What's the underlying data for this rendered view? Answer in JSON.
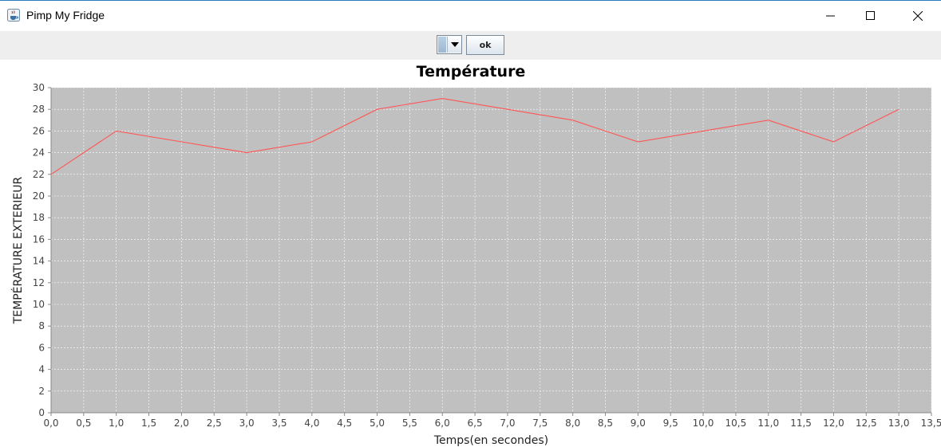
{
  "window": {
    "title": "Pimp My Fridge",
    "icon": "java-coffee-icon",
    "controls": [
      "minimize-icon",
      "maximize-icon",
      "close-icon"
    ]
  },
  "toolbar": {
    "combo_value": "",
    "ok_label": "ok"
  },
  "chart_data": {
    "type": "line",
    "title": "Température",
    "xlabel": "Temps(en secondes)",
    "ylabel": "TEMPÉRATURE EXTERIEUR",
    "xlim": [
      0,
      13.5
    ],
    "ylim": [
      0,
      30
    ],
    "x_ticks": [
      "0,0",
      "0,5",
      "1,0",
      "1,5",
      "2,0",
      "2,5",
      "3,0",
      "3,5",
      "4,0",
      "4,5",
      "5,0",
      "5,5",
      "6,0",
      "6,5",
      "7,0",
      "7,5",
      "8,0",
      "8,5",
      "9,0",
      "9,5",
      "10,0",
      "10,5",
      "11,0",
      "11,5",
      "12,0",
      "12,5",
      "13,0",
      "13,5"
    ],
    "y_ticks": [
      "0",
      "2",
      "4",
      "6",
      "8",
      "10",
      "12",
      "14",
      "16",
      "18",
      "20",
      "22",
      "24",
      "26",
      "28",
      "30"
    ],
    "grid": true,
    "legend": "none",
    "background_color": "#c0c0c0",
    "grid_color": "#ffffff",
    "series": [
      {
        "color": "#ff5555",
        "x": [
          0,
          1,
          2,
          3,
          4,
          5,
          6,
          7,
          8,
          9,
          10,
          11,
          12,
          13
        ],
        "y": [
          22,
          26,
          25,
          24,
          25,
          28,
          29,
          28,
          27,
          25,
          26,
          27,
          25,
          28
        ]
      }
    ]
  }
}
